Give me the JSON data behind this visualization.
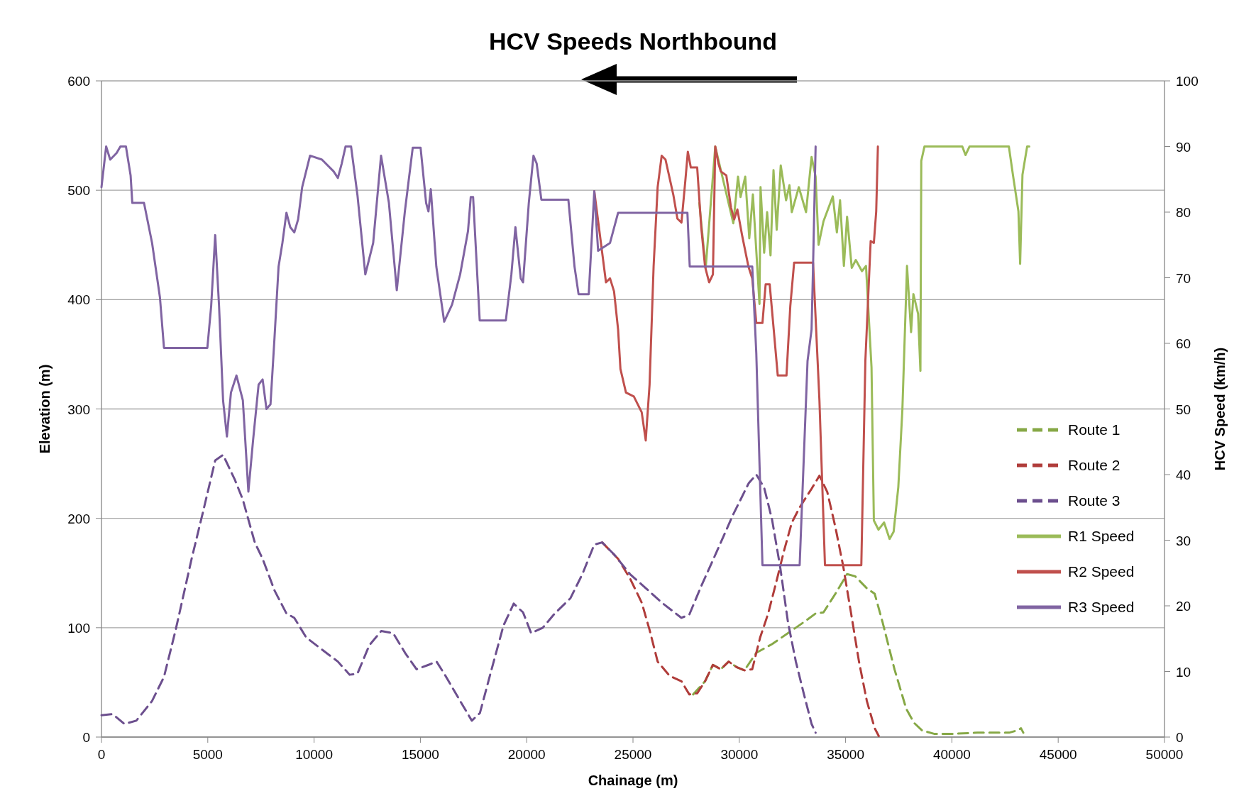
{
  "chart_data": {
    "type": "line",
    "title": "HCV Speeds Northbound",
    "xlabel": "Chainage (m)",
    "ylabel": "Elevation (m)",
    "y2label": "HCV Speed (km/h)",
    "xlim": [
      0,
      50000
    ],
    "xticks": [
      0,
      5000,
      10000,
      15000,
      20000,
      25000,
      30000,
      35000,
      40000,
      45000,
      50000
    ],
    "ylim": [
      0,
      600
    ],
    "yticks": [
      0,
      100,
      200,
      300,
      400,
      500,
      600
    ],
    "y2lim": [
      0,
      100
    ],
    "y2ticks": [
      0,
      10,
      20,
      30,
      40,
      50,
      60,
      70,
      80,
      90,
      100
    ],
    "grid": "y",
    "legend": "right",
    "marker": "none",
    "series": [
      {
        "name": "Route 1",
        "color": "#86a846",
        "line_style": "dashed",
        "x": [
          27830,
          28390,
          28760,
          29130,
          29500,
          29870,
          30240,
          30800,
          31540,
          32290,
          33030,
          33590,
          33960,
          34520,
          35070,
          35450,
          36000,
          36370,
          36740,
          37300,
          37850,
          38220,
          38600,
          39160,
          40090,
          41200,
          42690,
          43060,
          43250,
          43360
        ],
        "values": [
          39,
          51,
          66,
          62,
          69,
          64,
          61,
          77,
          85,
          95,
          105,
          113,
          114,
          131,
          149,
          147,
          136,
          131,
          105,
          62,
          26,
          13,
          6,
          3,
          3,
          4,
          4,
          6,
          8,
          4
        ]
      },
      {
        "name": "Route 2",
        "color": "#b03c3a",
        "line_style": "dashed",
        "x": [
          23550,
          24300,
          24860,
          25410,
          25780,
          26160,
          26720,
          27280,
          27650,
          28020,
          28390,
          28760,
          29130,
          29500,
          29870,
          30240,
          30610,
          30980,
          31360,
          31730,
          32100,
          32470,
          32840,
          33400,
          33770,
          34140,
          34520,
          34890,
          35260,
          35630,
          36000,
          36370,
          36560
        ],
        "values": [
          178,
          163,
          145,
          123,
          98,
          69,
          56,
          51,
          39,
          40,
          51,
          66,
          62,
          69,
          64,
          61,
          62,
          91,
          113,
          141,
          170,
          196,
          210,
          227,
          239,
          224,
          192,
          156,
          113,
          69,
          33,
          8,
          1
        ]
      },
      {
        "name": "Route 3",
        "color": "#6c4f8e",
        "line_style": "dashed",
        "x": [
          0,
          520,
          1080,
          1640,
          2380,
          2940,
          3490,
          4240,
          4790,
          5350,
          5720,
          6280,
          6650,
          7210,
          7580,
          8140,
          8700,
          9070,
          9630,
          10370,
          11120,
          11670,
          12040,
          12600,
          13160,
          13720,
          14280,
          14820,
          15380,
          15760,
          16120,
          16870,
          17420,
          17800,
          18350,
          18910,
          19390,
          19830,
          20210,
          20760,
          21320,
          22060,
          22620,
          23180,
          23550,
          24110,
          24860,
          25610,
          26350,
          27280,
          27650,
          28210,
          28950,
          29700,
          30440,
          30800,
          31170,
          31540,
          31920,
          32290,
          32660,
          33030,
          33400,
          33590
        ],
        "values": [
          20,
          21,
          12,
          15,
          33,
          55,
          98,
          163,
          207,
          253,
          258,
          235,
          217,
          178,
          163,
          134,
          113,
          109,
          91,
          80,
          69,
          57,
          58,
          84,
          97,
          95,
          77,
          62,
          66,
          69,
          58,
          33,
          15,
          22,
          62,
          102,
          122,
          114,
          95,
          100,
          113,
          127,
          149,
          176,
          178,
          167,
          149,
          136,
          123,
          109,
          112,
          138,
          170,
          203,
          232,
          240,
          228,
          199,
          156,
          105,
          69,
          40,
          12,
          4
        ]
      },
      {
        "name": "R1 Speed",
        "color": "#9bbb59",
        "line_style": "solid",
        "axis": "y2",
        "x": [
          28120,
          28420,
          28870,
          29720,
          29940,
          30060,
          30280,
          30470,
          30640,
          30950,
          31000,
          31170,
          31310,
          31470,
          31610,
          31760,
          31950,
          32200,
          32360,
          32470,
          32800,
          33140,
          33400,
          33590,
          33730,
          33960,
          34400,
          34590,
          34740,
          34920,
          35070,
          35290,
          35480,
          35770,
          35960,
          36220,
          36330,
          36550,
          36810,
          37070,
          37260,
          37480,
          37670,
          37890,
          38080,
          38190,
          38410,
          38520,
          38560,
          38710,
          40490,
          40640,
          40830,
          42680,
          42870,
          43130,
          43210,
          43320,
          43540,
          43640
        ],
        "values": [
          81.4,
          71.5,
          90,
          78.3,
          85.4,
          82.3,
          85.4,
          76,
          82.7,
          66,
          83.8,
          73.8,
          80,
          73.4,
          86.4,
          77.3,
          87.1,
          81.8,
          84.1,
          80,
          83.8,
          80,
          88.4,
          85.4,
          75,
          78.6,
          82.4,
          76.9,
          81.8,
          71.8,
          79.3,
          71.5,
          72.7,
          71,
          71.8,
          56.3,
          33,
          31.6,
          32.7,
          30.2,
          31.3,
          38.1,
          49.8,
          71.8,
          61.7,
          67.5,
          64.5,
          55.8,
          87.8,
          90,
          90,
          88.7,
          90,
          90,
          85.7,
          80.1,
          72.1,
          85.7,
          90,
          90
        ]
      },
      {
        "name": "R2 Speed",
        "color": "#c0504d",
        "line_style": "solid",
        "axis": "y2",
        "x": [
          23180,
          23730,
          23920,
          24110,
          24300,
          24410,
          24670,
          25040,
          25410,
          25600,
          25780,
          25970,
          26160,
          26350,
          26530,
          26900,
          27090,
          27280,
          27460,
          27580,
          27720,
          28020,
          28210,
          28390,
          28580,
          28760,
          28870,
          29020,
          29130,
          29390,
          29610,
          29760,
          29910,
          30130,
          30430,
          30610,
          30800,
          31090,
          31240,
          31430,
          31620,
          31810,
          32220,
          32400,
          32580,
          33470,
          33770,
          34030,
          35740,
          35930,
          36180,
          36330,
          36440,
          36520
        ],
        "values": [
          83.2,
          69.3,
          69.9,
          67.9,
          62.1,
          56.1,
          52.5,
          51.9,
          49.5,
          45.2,
          53.7,
          71.7,
          83.8,
          88.6,
          88,
          82.6,
          79,
          78.4,
          84.7,
          89.2,
          86.8,
          86.8,
          77.7,
          71.7,
          69.3,
          70.5,
          90,
          87.4,
          86.2,
          85.6,
          80.7,
          78.9,
          80.4,
          76.5,
          71.7,
          69.9,
          63.1,
          63.1,
          69,
          69,
          62.1,
          55.1,
          55.1,
          65.7,
          72.3,
          72.3,
          51.3,
          26.2,
          26.2,
          57.3,
          75.6,
          75.3,
          80.1,
          90
        ]
      },
      {
        "name": "R3 Speed",
        "color": "#8064a2",
        "line_style": "solid",
        "axis": "y2",
        "x": [
          0,
          220,
          410,
          710,
          890,
          1150,
          1370,
          1450,
          2000,
          2380,
          2750,
          2940,
          4980,
          5160,
          5350,
          5530,
          5720,
          5900,
          6090,
          6350,
          6650,
          6910,
          7130,
          7390,
          7580,
          7760,
          7950,
          8140,
          8330,
          8510,
          8700,
          8880,
          9070,
          9250,
          9440,
          9810,
          10370,
          10920,
          11120,
          11300,
          11480,
          11740,
          12040,
          12410,
          12780,
          13150,
          13520,
          13890,
          14270,
          14640,
          15010,
          15270,
          15380,
          15490,
          15750,
          16120,
          16490,
          16870,
          17240,
          17370,
          17480,
          17790,
          19020,
          19280,
          19470,
          19720,
          19830,
          20100,
          20320,
          20470,
          20690,
          21960,
          22250,
          22440,
          22920,
          23180,
          23360,
          23920,
          24300,
          27560,
          27670,
          30610,
          30800,
          31090,
          32840,
          33210,
          33400,
          33470,
          33590
        ],
        "values": [
          83.8,
          90,
          88,
          89,
          90,
          90,
          85.6,
          81.4,
          81.4,
          75.3,
          67,
          59.3,
          59.3,
          65.7,
          76.5,
          65.7,
          51.3,
          45.8,
          52.5,
          55.1,
          51.3,
          37.4,
          45.2,
          53.7,
          54.5,
          50,
          50.7,
          60.9,
          71.7,
          75.3,
          79.9,
          77.7,
          76.9,
          78.9,
          83.8,
          88.6,
          88,
          86.2,
          85.2,
          87.4,
          90,
          90,
          82.6,
          70.5,
          75.3,
          88.6,
          81.4,
          68.1,
          80.1,
          89.8,
          89.8,
          81.4,
          80.1,
          83.5,
          71.7,
          63.3,
          65.9,
          70.5,
          77.1,
          82.3,
          82.3,
          63.5,
          63.5,
          70.5,
          77.7,
          69.9,
          69.3,
          81.4,
          88.6,
          87.4,
          81.9,
          81.9,
          71.7,
          67.5,
          67.5,
          83.2,
          74.1,
          75.3,
          79.9,
          79.9,
          71.7,
          71.7,
          58.5,
          26.2,
          26.2,
          57.3,
          62.1,
          71.7,
          90
        ]
      }
    ]
  }
}
